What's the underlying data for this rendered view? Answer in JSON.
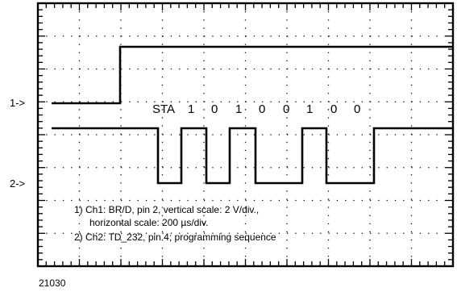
{
  "markers": {
    "ch1": "1->",
    "ch2": "2->"
  },
  "sequence": {
    "start_label": "STA",
    "bits": [
      "1",
      "0",
      "1",
      "0",
      "0",
      "1",
      "0",
      "0"
    ]
  },
  "notes": {
    "line1": "1) Ch1: BR/D, pin 2, vertical scale: 2 V/div.,",
    "line2": "horizontal scale: 200 µs/div.",
    "line3": "2) Ch2: TD_232, pin 4; programming sequence"
  },
  "figure_id": "21030"
}
